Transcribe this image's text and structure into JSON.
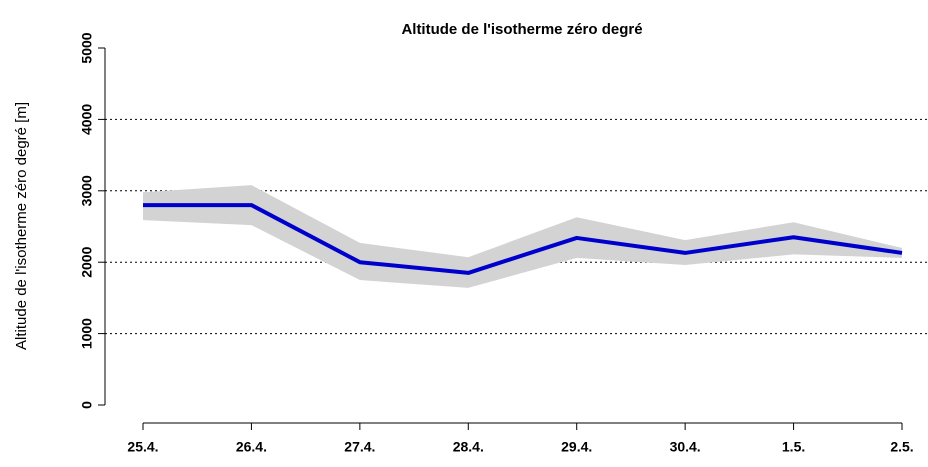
{
  "chart_data": {
    "type": "line",
    "title": "Altitude de l'isotherme zéro degré",
    "y_label": "Altitude de l'isotherme zéro degré [m]",
    "categories": [
      "25.4.",
      "26.4.",
      "27.4.",
      "28.4.",
      "29.4.",
      "30.4.",
      "1.5.",
      "2.5."
    ],
    "series": [
      {
        "color": "#0000cc",
        "values": [
          2800,
          2800,
          2000,
          1850,
          2340,
          2130,
          2350,
          2130
        ],
        "band": {
          "color": "#d3d3d3",
          "upper": [
            2980,
            3080,
            2270,
            2070,
            2630,
            2310,
            2560,
            2200
          ],
          "lower": [
            2590,
            2520,
            1750,
            1640,
            2060,
            1960,
            2110,
            2060
          ]
        }
      }
    ],
    "ylim": [
      0,
      5000
    ],
    "yticks": [
      0,
      1000,
      2000,
      3000,
      4000,
      5000
    ],
    "grid": true
  }
}
